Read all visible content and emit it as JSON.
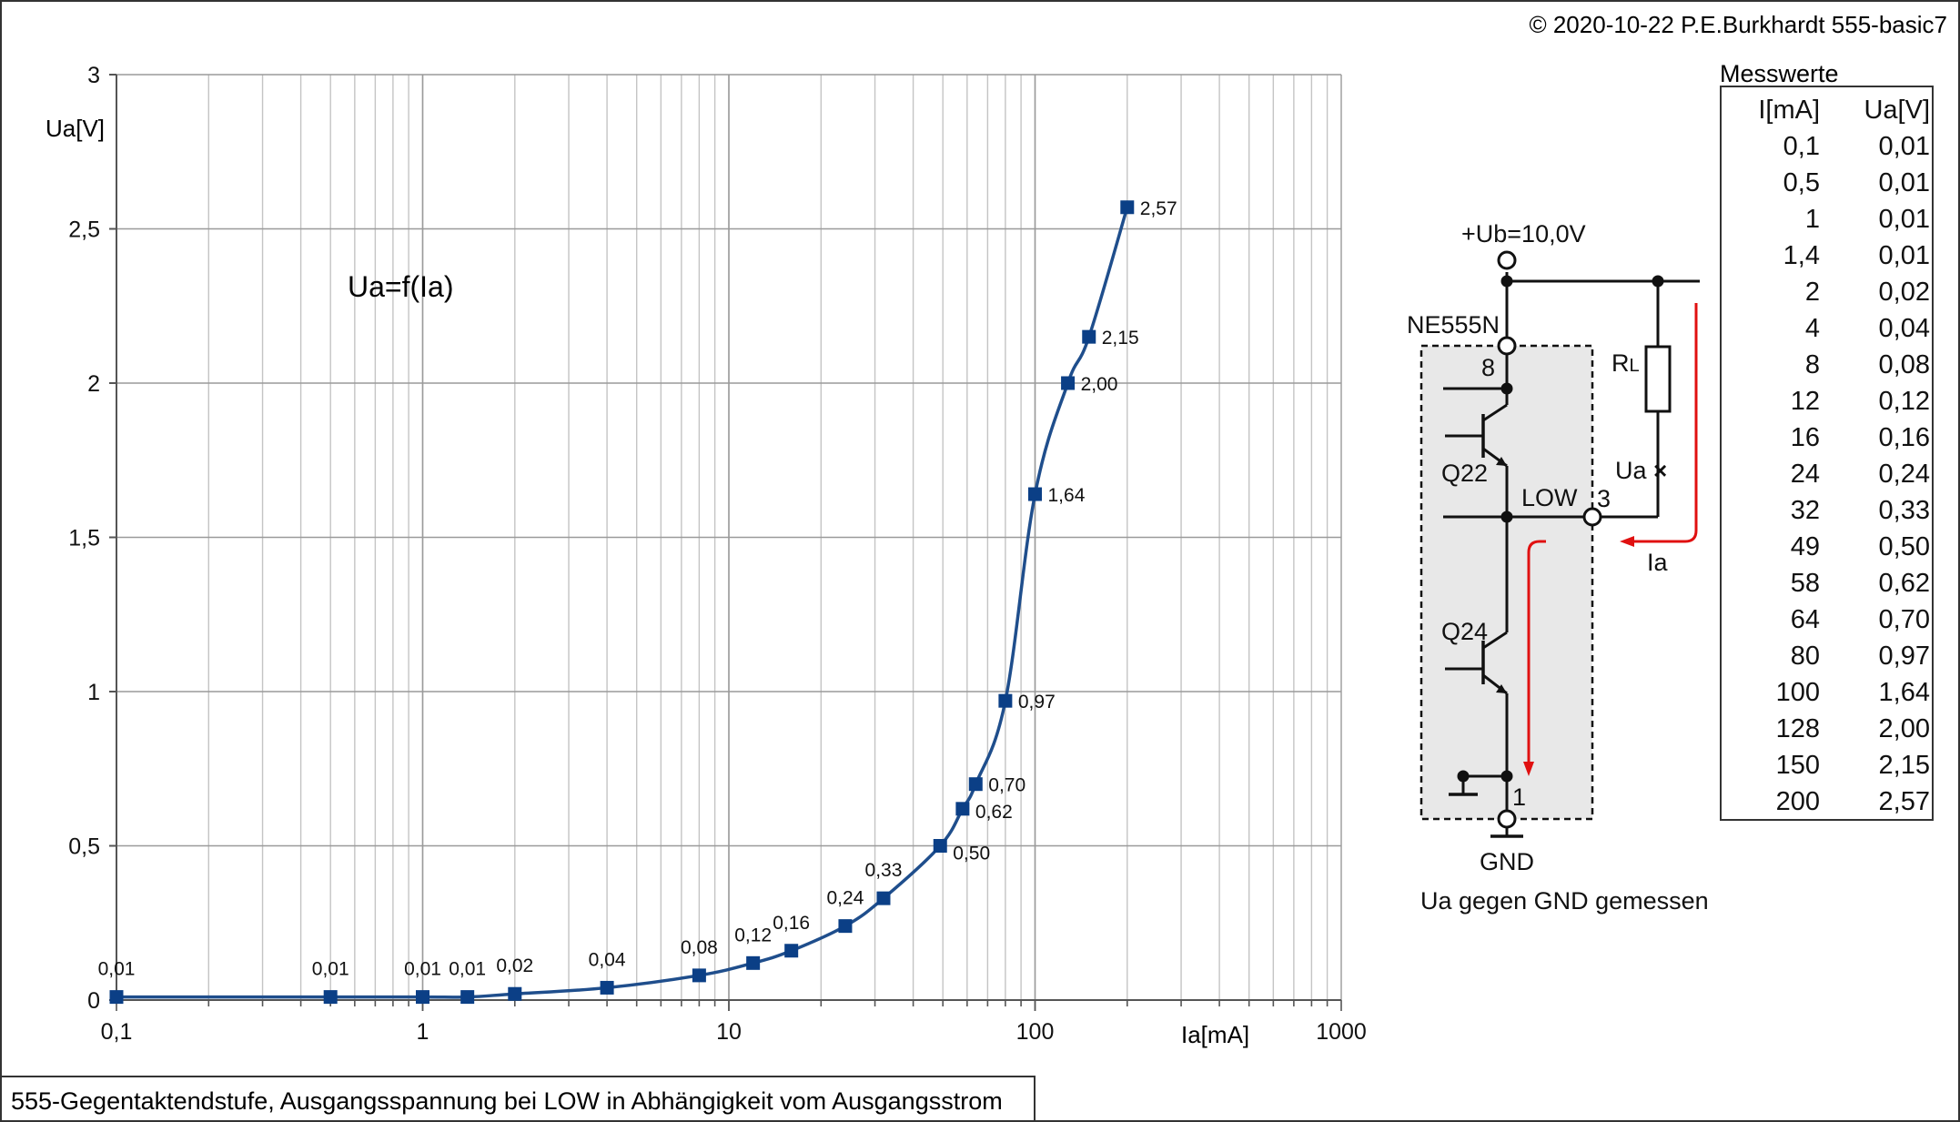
{
  "header": {
    "copyright": "© 2020-10-22 P.E.Burkhardt 555-basic7"
  },
  "caption": "555-Gegentaktendstufe, Ausgangsspannung bei LOW in Abhängigkeit vom Ausgangsstrom",
  "chart_data": {
    "type": "line",
    "title": "",
    "annotation": "Ua=f(Ia)",
    "xlabel": "Ia[mA]",
    "ylabel": "Ua[V]",
    "xscale": "log",
    "xlim": [
      0.1,
      1000
    ],
    "ylim": [
      0,
      3
    ],
    "xticks": [
      0.1,
      1,
      10,
      100,
      1000
    ],
    "xtick_labels": [
      "0,1",
      "1",
      "10",
      "100",
      "1000"
    ],
    "yticks": [
      0,
      0.5,
      1,
      1.5,
      2,
      2.5,
      3
    ],
    "ytick_labels": [
      "0",
      "0,5",
      "1",
      "1,5",
      "2",
      "2,5",
      "3"
    ],
    "grid": true,
    "legend": "none",
    "series_color": "#1f4e8c",
    "marker_color": "#0b3f86",
    "points": [
      {
        "x": 0.1,
        "y": 0.01,
        "label": "0,01"
      },
      {
        "x": 0.5,
        "y": 0.01,
        "label": "0,01"
      },
      {
        "x": 1,
        "y": 0.01,
        "label": "0,01"
      },
      {
        "x": 1.4,
        "y": 0.01,
        "label": "0,01"
      },
      {
        "x": 2,
        "y": 0.02,
        "label": "0,02"
      },
      {
        "x": 4,
        "y": 0.04,
        "label": "0,04"
      },
      {
        "x": 8,
        "y": 0.08,
        "label": "0,08"
      },
      {
        "x": 12,
        "y": 0.12,
        "label": "0,12"
      },
      {
        "x": 16,
        "y": 0.16,
        "label": "0,16"
      },
      {
        "x": 24,
        "y": 0.24,
        "label": "0,24"
      },
      {
        "x": 32,
        "y": 0.33,
        "label": "0,33"
      },
      {
        "x": 49,
        "y": 0.5,
        "label": "0,50"
      },
      {
        "x": 58,
        "y": 0.62,
        "label": "0,62"
      },
      {
        "x": 64,
        "y": 0.7,
        "label": "0,70"
      },
      {
        "x": 80,
        "y": 0.97,
        "label": "0,97"
      },
      {
        "x": 100,
        "y": 1.64,
        "label": "1,64"
      },
      {
        "x": 128,
        "y": 2.0,
        "label": "2,00"
      },
      {
        "x": 150,
        "y": 2.15,
        "label": "2,15"
      },
      {
        "x": 200,
        "y": 2.57,
        "label": "2,57"
      }
    ]
  },
  "table": {
    "title": "Messwerte",
    "headers": [
      "I[mA]",
      "Ua[V]"
    ],
    "rows": [
      [
        "0,1",
        "0,01"
      ],
      [
        "0,5",
        "0,01"
      ],
      [
        "1",
        "0,01"
      ],
      [
        "1,4",
        "0,01"
      ],
      [
        "2",
        "0,02"
      ],
      [
        "4",
        "0,04"
      ],
      [
        "8",
        "0,08"
      ],
      [
        "12",
        "0,12"
      ],
      [
        "16",
        "0,16"
      ],
      [
        "24",
        "0,24"
      ],
      [
        "32",
        "0,33"
      ],
      [
        "49",
        "0,50"
      ],
      [
        "58",
        "0,62"
      ],
      [
        "64",
        "0,70"
      ],
      [
        "80",
        "0,97"
      ],
      [
        "100",
        "1,64"
      ],
      [
        "128",
        "2,00"
      ],
      [
        "150",
        "2,15"
      ],
      [
        "200",
        "2,57"
      ]
    ]
  },
  "circuit": {
    "supply": "+Ub=10,0V",
    "ic": "NE555N",
    "pin8": "8",
    "pin3": "3",
    "pin1": "1",
    "q22": "Q22",
    "q24": "Q24",
    "low": "LOW",
    "rl_main": "R",
    "rl_sub": "L",
    "ua": "Ua",
    "ia": "Ia",
    "gnd": "GND",
    "note": "Ua gegen GND gemessen",
    "arrow_color": "#e01010"
  }
}
